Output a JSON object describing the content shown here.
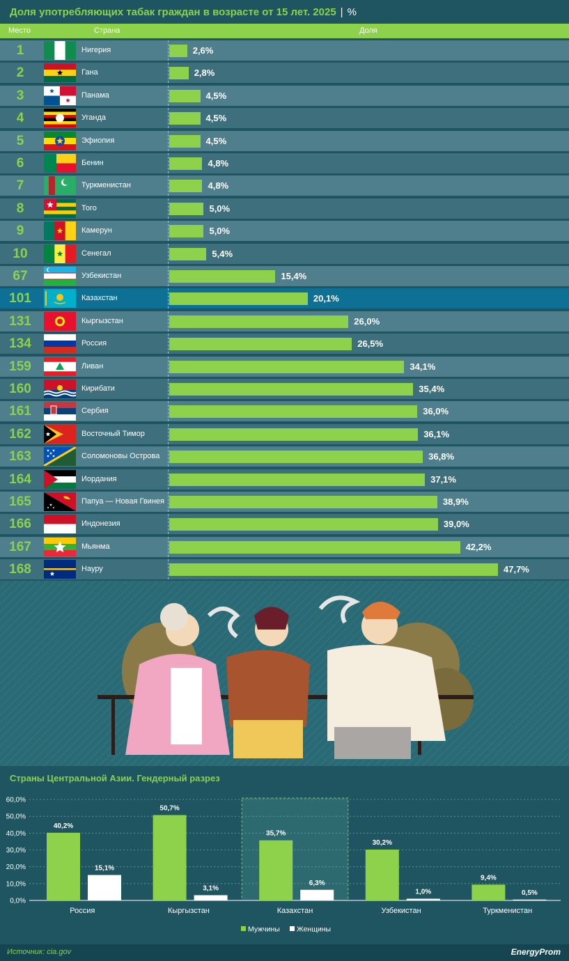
{
  "header": {
    "title": "Доля употребляющих табак граждан в возрасте от 15 лет. 2025",
    "separator": "|",
    "unit": "%"
  },
  "columns": {
    "rank": "Место",
    "country": "Страна",
    "share": "Доля"
  },
  "colors": {
    "accent": "#8dd24a",
    "background": "#1f5560",
    "highlight": "#0f7095"
  },
  "chart_data": [
    {
      "type": "bar",
      "orientation": "horizontal",
      "title": "Доля употребляющих табак граждан в возрасте от 15 лет. 2025",
      "rows": [
        {
          "rank": "1",
          "country": "Нигерия",
          "value": 2.6,
          "label": "2,6%",
          "flag": "nigeria"
        },
        {
          "rank": "2",
          "country": "Гана",
          "value": 2.8,
          "label": "2,8%",
          "flag": "ghana"
        },
        {
          "rank": "3",
          "country": "Панама",
          "value": 4.5,
          "label": "4,5%",
          "flag": "panama"
        },
        {
          "rank": "4",
          "country": "Уганда",
          "value": 4.5,
          "label": "4,5%",
          "flag": "uganda"
        },
        {
          "rank": "5",
          "country": "Эфиопия",
          "value": 4.5,
          "label": "4,5%",
          "flag": "ethiopia"
        },
        {
          "rank": "6",
          "country": "Бенин",
          "value": 4.8,
          "label": "4,8%",
          "flag": "benin"
        },
        {
          "rank": "7",
          "country": "Туркменистан",
          "value": 4.8,
          "label": "4,8%",
          "flag": "turkmenistan"
        },
        {
          "rank": "8",
          "country": "Того",
          "value": 5.0,
          "label": "5,0%",
          "flag": "togo"
        },
        {
          "rank": "9",
          "country": "Камерун",
          "value": 5.0,
          "label": "5,0%",
          "flag": "cameroon"
        },
        {
          "rank": "10",
          "country": "Сенегал",
          "value": 5.4,
          "label": "5,4%",
          "flag": "senegal"
        },
        {
          "rank": "67",
          "country": "Узбекистан",
          "value": 15.4,
          "label": "15,4%",
          "flag": "uzbekistan"
        },
        {
          "rank": "101",
          "country": "Казахстан",
          "value": 20.1,
          "label": "20,1%",
          "flag": "kazakhstan",
          "highlight": true
        },
        {
          "rank": "131",
          "country": "Кыргызстан",
          "value": 26.0,
          "label": "26,0%",
          "flag": "kyrgyzstan"
        },
        {
          "rank": "134",
          "country": "Россия",
          "value": 26.5,
          "label": "26,5%",
          "flag": "russia"
        },
        {
          "rank": "159",
          "country": "Ливан",
          "value": 34.1,
          "label": "34,1%",
          "flag": "lebanon"
        },
        {
          "rank": "160",
          "country": "Кирибати",
          "value": 35.4,
          "label": "35,4%",
          "flag": "kiribati"
        },
        {
          "rank": "161",
          "country": "Сербия",
          "value": 36.0,
          "label": "36,0%",
          "flag": "serbia"
        },
        {
          "rank": "162",
          "country": "Восточный Тимор",
          "value": 36.1,
          "label": "36,1%",
          "flag": "timor"
        },
        {
          "rank": "163",
          "country": "Соломоновы Острова",
          "value": 36.8,
          "label": "36,8%",
          "flag": "solomon"
        },
        {
          "rank": "164",
          "country": "Иордания",
          "value": 37.1,
          "label": "37,1%",
          "flag": "jordan"
        },
        {
          "rank": "165",
          "country": "Папуа — Новая Гвинея",
          "value": 38.9,
          "label": "38,9%",
          "flag": "png"
        },
        {
          "rank": "166",
          "country": "Индонезия",
          "value": 39.0,
          "label": "39,0%",
          "flag": "indonesia"
        },
        {
          "rank": "167",
          "country": "Мьянма",
          "value": 42.2,
          "label": "42,2%",
          "flag": "myanmar"
        },
        {
          "rank": "168",
          "country": "Науру",
          "value": 47.7,
          "label": "47,7%",
          "flag": "nauru"
        }
      ]
    },
    {
      "type": "bar",
      "title": "Страны Центральной Азии. Гендерный разрез",
      "categories": [
        "Россия",
        "Кыргызстан",
        "Казахстан",
        "Узбекистан",
        "Туркменистан"
      ],
      "highlight_category": "Казахстан",
      "series": [
        {
          "name": "Мужчины",
          "color": "#8dd24a",
          "values": [
            40.2,
            50.7,
            35.7,
            30.2,
            9.4
          ],
          "labels": [
            "40,2%",
            "50,7%",
            "35,7%",
            "30,2%",
            "9,4%"
          ]
        },
        {
          "name": "Женщины",
          "color": "#ffffff",
          "values": [
            15.1,
            3.1,
            6.3,
            1.0,
            0.5
          ],
          "labels": [
            "15,1%",
            "3,1%",
            "6,3%",
            "1,0%",
            "0,5%"
          ]
        }
      ],
      "ylim": [
        0,
        60
      ],
      "yticks": [
        "0,0%",
        "10,0%",
        "20,0%",
        "30,0%",
        "40,0%",
        "50,0%",
        "60,0%"
      ],
      "grid": true,
      "legend": "bottom"
    }
  ],
  "footer": {
    "source": "Источник: cia.gov",
    "logo": "EnergyProm"
  }
}
